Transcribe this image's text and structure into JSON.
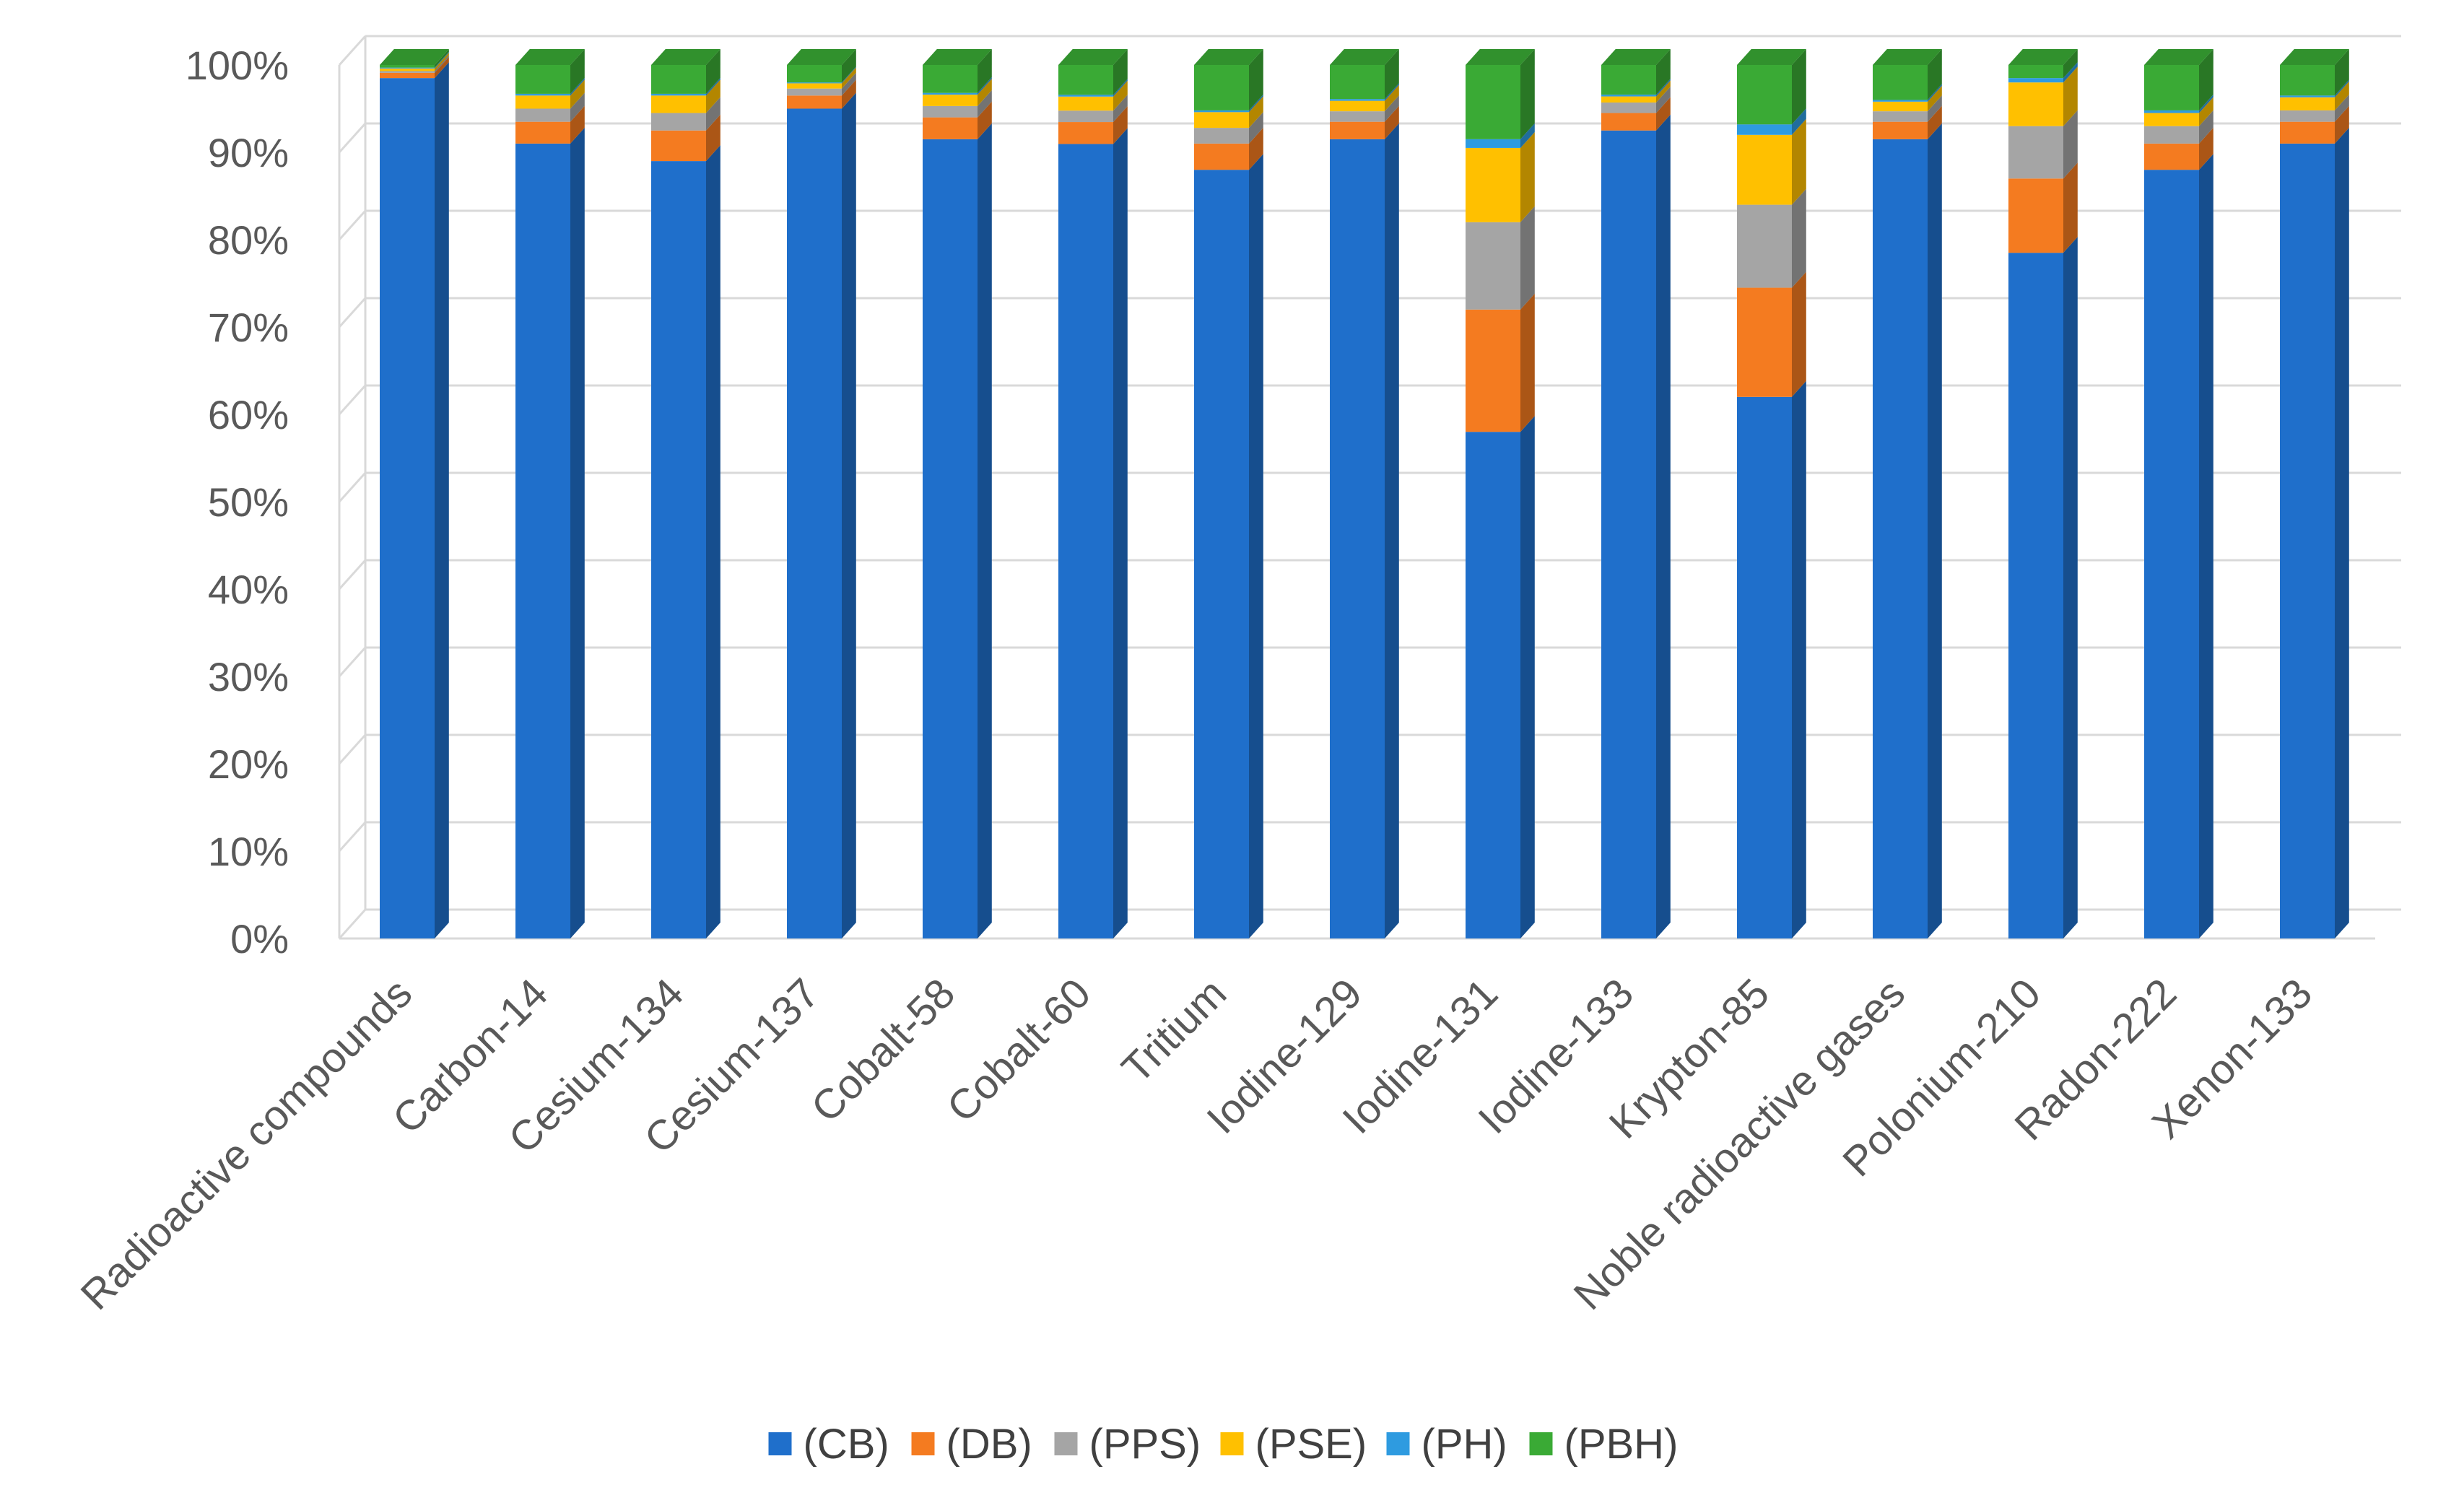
{
  "chart_data": {
    "type": "bar",
    "stacked": "percent",
    "style": "3d-column",
    "title": "",
    "xlabel": "",
    "ylabel": "",
    "ylim": [
      0,
      100
    ],
    "yticks": [
      0,
      10,
      20,
      30,
      40,
      50,
      60,
      70,
      80,
      90,
      100
    ],
    "ytick_suffix": "%",
    "grid": true,
    "legend_position": "bottom",
    "categories": [
      "Radioactive compounds",
      "Carbon-14",
      "Cesium-134",
      "Cesium-137",
      "Cobalt-58",
      "Cobalt-60",
      "Tritium",
      "Iodine-129",
      "Iodine-131",
      "Iodine-133",
      "Krypton-85",
      "Noble radioactive gases",
      "Polonium-210",
      "Radon-222",
      "Xenon-133"
    ],
    "series": [
      {
        "name": "(CB)",
        "color": "#1F6FCB",
        "values": [
          98.5,
          91,
          89,
          95,
          91.5,
          90.5,
          88,
          91.5,
          58,
          92.5,
          62,
          91.5,
          78.5,
          88,
          91
        ]
      },
      {
        "name": "(DB)",
        "color": "#F47B20",
        "values": [
          0.6,
          2.5,
          3.5,
          1.5,
          2.5,
          2.5,
          3,
          2,
          14,
          2,
          12.5,
          2,
          8.5,
          3,
          2.5
        ]
      },
      {
        "name": "(PPS)",
        "color": "#A5A5A5",
        "values": [
          0.2,
          1.5,
          2,
          0.8,
          1.3,
          1.3,
          1.8,
          1.2,
          10,
          1.2,
          9.5,
          1.2,
          6,
          2,
          1.3
        ]
      },
      {
        "name": "(PSE)",
        "color": "#FFC000",
        "values": [
          0.3,
          1.5,
          2,
          0.6,
          1.3,
          1.6,
          1.8,
          1.2,
          8.5,
          0.7,
          8,
          1.1,
          5,
          1.5,
          1.5
        ]
      },
      {
        "name": "(PH)",
        "color": "#2E9BE0",
        "values": [
          0.1,
          0.2,
          0.2,
          0.1,
          0.2,
          0.2,
          0.2,
          0.2,
          1,
          0.2,
          1.2,
          0.2,
          0.5,
          0.3,
          0.2
        ]
      },
      {
        "name": "(PBH)",
        "color": "#3AAA35",
        "values": [
          0.3,
          3.3,
          3.3,
          2,
          3.2,
          3.4,
          5.2,
          3.9,
          8.5,
          3.4,
          6.8,
          4,
          1.5,
          5.2,
          3.5
        ]
      }
    ]
  }
}
